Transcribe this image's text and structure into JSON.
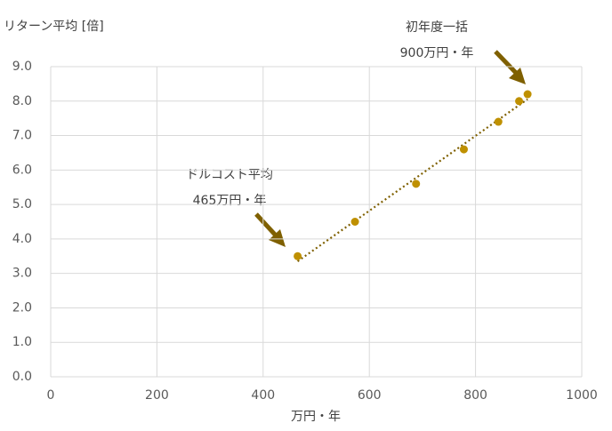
{
  "chart_data": {
    "type": "scatter",
    "y_label": "リターン平均 [倍]",
    "x_label": "万円・年",
    "series": [
      {
        "color": "#bf9000",
        "x": [
          465,
          573,
          688,
          778,
          843,
          882,
          898
        ],
        "values": [
          3.5,
          4.5,
          5.6,
          6.6,
          7.4,
          8.0,
          8.2
        ]
      }
    ],
    "trendline": true,
    "trendline_color": "#7f6000",
    "xlim": [
      0,
      1000
    ],
    "xticks": [
      0,
      200,
      400,
      600,
      800,
      1000
    ],
    "ylim": [
      0,
      9
    ],
    "yticks": [
      {
        "value": 0,
        "label": "0.0"
      },
      {
        "value": 1,
        "label": "1.0"
      },
      {
        "value": 2,
        "label": "2.0"
      },
      {
        "value": 3,
        "label": "3.0"
      },
      {
        "value": 4,
        "label": "4.0"
      },
      {
        "value": 5,
        "label": "5.0"
      },
      {
        "value": 6,
        "label": "6.0"
      },
      {
        "value": 7,
        "label": "7.0"
      },
      {
        "value": 8,
        "label": "8.0"
      },
      {
        "value": 9,
        "label": "9.0"
      }
    ],
    "grid": true,
    "annotations": [
      {
        "lines": [
          "初年度一括",
          "900万円・年"
        ]
      },
      {
        "lines": [
          "ドルコスト平均",
          "465万円・年"
        ]
      }
    ]
  }
}
